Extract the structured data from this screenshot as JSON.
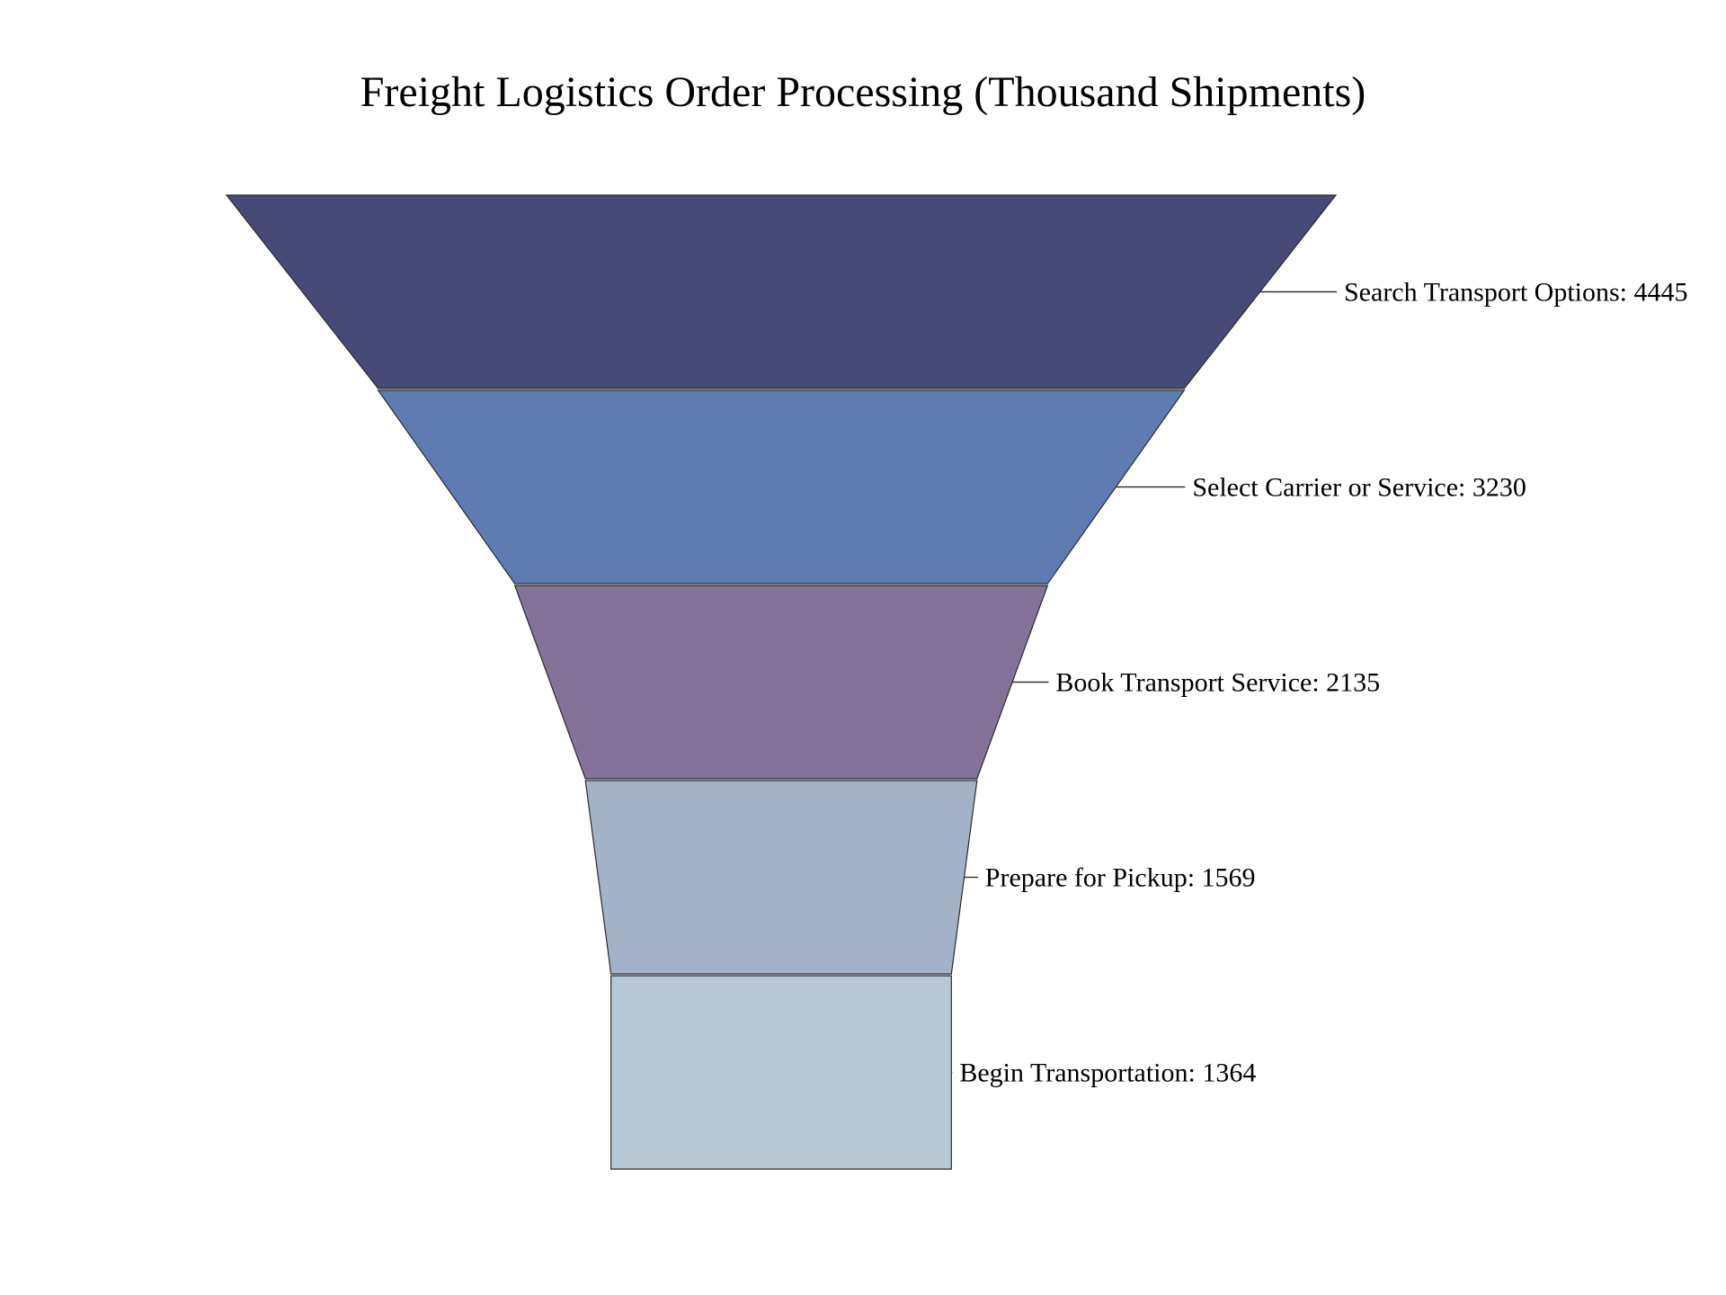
{
  "chart_data": {
    "type": "funnel",
    "title": "Freight Logistics Order Processing (Thousand Shipments)",
    "label_separator": ": ",
    "stages": [
      {
        "label": "Search Transport Options",
        "value": 4445,
        "color": "#474977"
      },
      {
        "label": "Select Carrier or Service",
        "value": 3230,
        "color": "#5e7cb2"
      },
      {
        "label": "Book Transport Service",
        "value": 2135,
        "color": "#857298"
      },
      {
        "label": "Prepare for Pickup",
        "value": 1569,
        "color": "#a3b2c8"
      },
      {
        "label": "Begin Transportation",
        "value": 1364,
        "color": "#b7c9d6"
      }
    ],
    "legend": "none",
    "grid": false
  }
}
